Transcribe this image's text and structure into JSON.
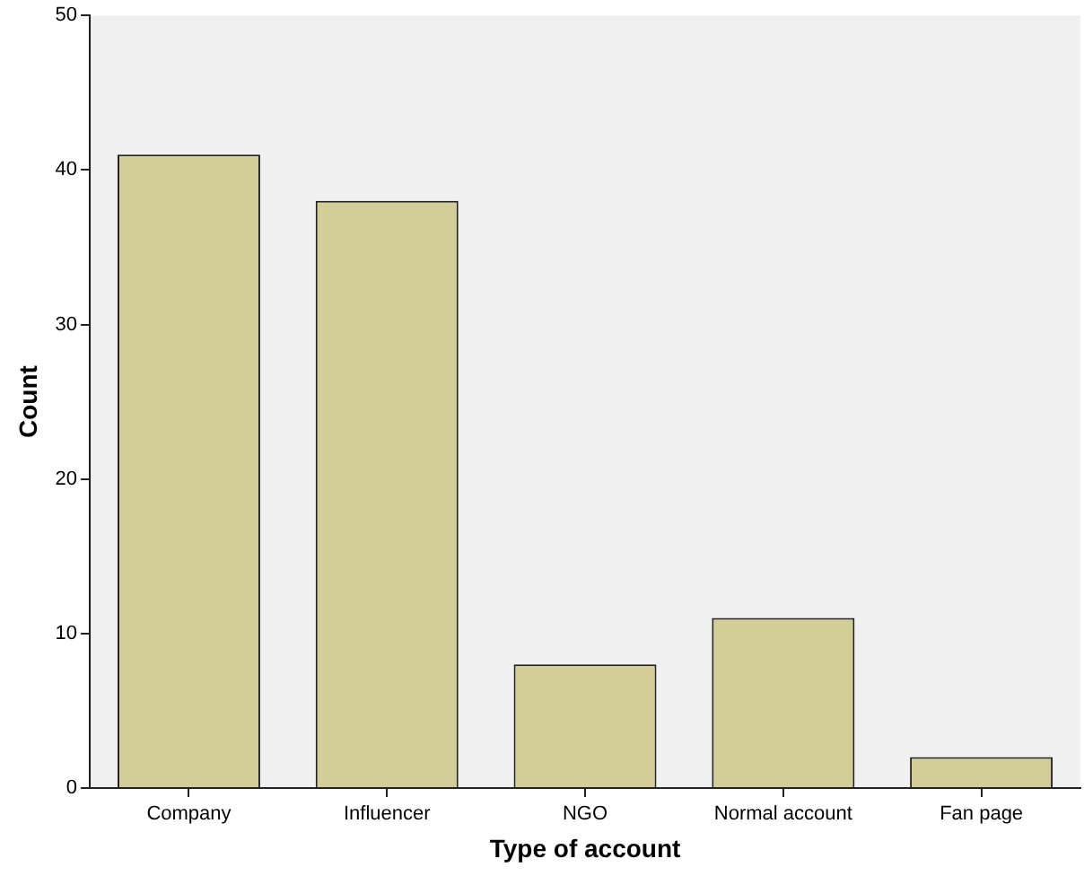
{
  "chart_data": {
    "type": "bar",
    "xlabel": "Type of account",
    "ylabel": "Count",
    "categories": [
      "Company",
      "Influencer",
      "NGO",
      "Normal account",
      "Fan page"
    ],
    "values": [
      41,
      38,
      8,
      11,
      2
    ],
    "color": "#d3ce97",
    "ylim": [
      0,
      50
    ],
    "yticks": [
      0,
      10,
      20,
      30,
      40,
      50
    ],
    "grid": false,
    "legend": false
  }
}
